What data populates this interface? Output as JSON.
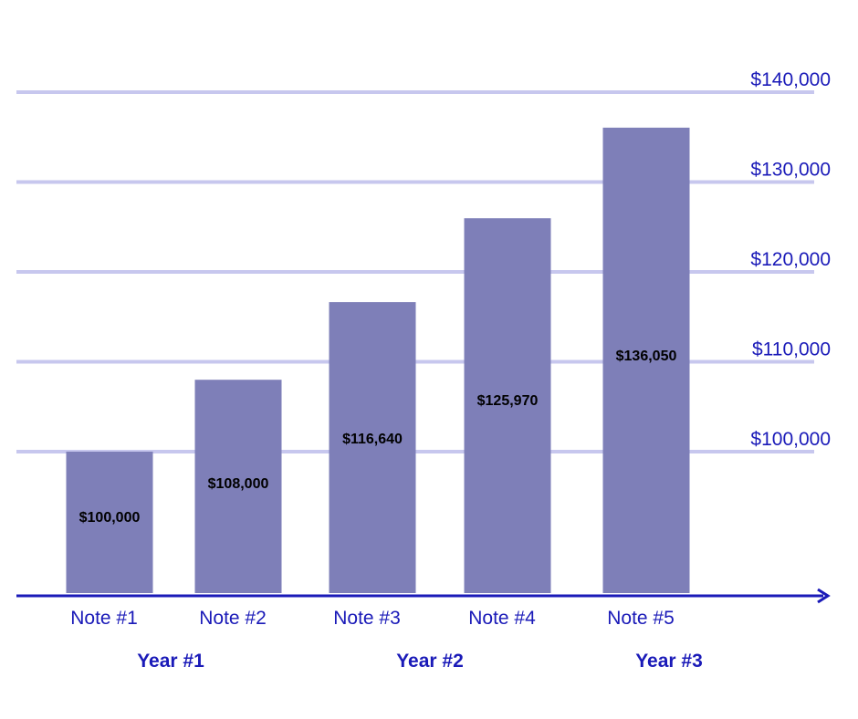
{
  "chart_data": {
    "type": "bar",
    "categories": [
      "Note #1",
      "Note #2",
      "Note #3",
      "Note #4",
      "Note #5"
    ],
    "values": [
      100000,
      108000,
      116640,
      125970,
      136050
    ],
    "data_labels": [
      "$100,000",
      "$108,000",
      "$116,640",
      "$125,970",
      "$136,050"
    ],
    "y_ticks": [
      {
        "value": 100000,
        "label": "$100,000"
      },
      {
        "value": 110000,
        "label": "$110,000"
      },
      {
        "value": 120000,
        "label": "$120,000"
      },
      {
        "value": 130000,
        "label": "$130,000"
      },
      {
        "value": 140000,
        "label": "$140,000"
      }
    ],
    "groups": [
      {
        "label": "Year #1",
        "categories": [
          "Note #1",
          "Note #2"
        ]
      },
      {
        "label": "Year #2",
        "categories": [
          "Note #3",
          "Note #4"
        ]
      },
      {
        "label": "Year #3",
        "categories": [
          "Note #5"
        ]
      }
    ],
    "title": "",
    "xlabel": "",
    "ylabel": "",
    "ylim": [
      80000,
      140000
    ],
    "grid": true,
    "bar_color": "#7e7fb8",
    "grid_color": "#c7c7ee",
    "axis_color": "#1a1ab8",
    "text_color": "#1a1ab8"
  }
}
